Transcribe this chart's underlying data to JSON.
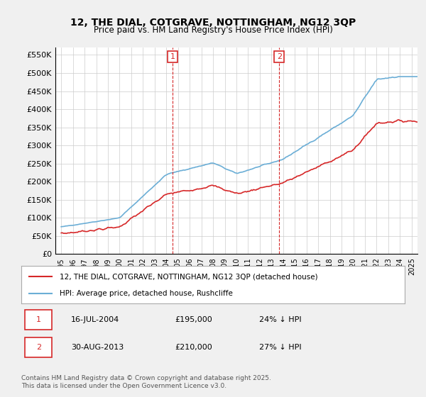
{
  "title": "12, THE DIAL, COTGRAVE, NOTTINGHAM, NG12 3QP",
  "subtitle": "Price paid vs. HM Land Registry's House Price Index (HPI)",
  "ylabel_ticks": [
    "£0",
    "£50K",
    "£100K",
    "£150K",
    "£200K",
    "£250K",
    "£300K",
    "£350K",
    "£400K",
    "£450K",
    "£500K",
    "£550K"
  ],
  "ytick_values": [
    0,
    50000,
    100000,
    150000,
    200000,
    250000,
    300000,
    350000,
    400000,
    450000,
    500000,
    550000
  ],
  "hpi_color": "#6baed6",
  "price_color": "#d62728",
  "marker1_date_x": 2004.54,
  "marker2_date_x": 2013.66,
  "legend_label1": "12, THE DIAL, COTGRAVE, NOTTINGHAM, NG12 3QP (detached house)",
  "legend_label2": "HPI: Average price, detached house, Rushcliffe",
  "annotation1_label": "1",
  "annotation2_label": "2",
  "table_row1": [
    "1",
    "16-JUL-2004",
    "£195,000",
    "24% ↓ HPI"
  ],
  "table_row2": [
    "2",
    "30-AUG-2013",
    "£210,000",
    "27% ↓ HPI"
  ],
  "footer": "Contains HM Land Registry data © Crown copyright and database right 2025.\nThis data is licensed under the Open Government Licence v3.0.",
  "background_color": "#f0f0f0",
  "plot_bg_color": "#ffffff",
  "ylim": [
    0,
    570000
  ],
  "xmin": 1994.5,
  "xmax": 2025.5
}
